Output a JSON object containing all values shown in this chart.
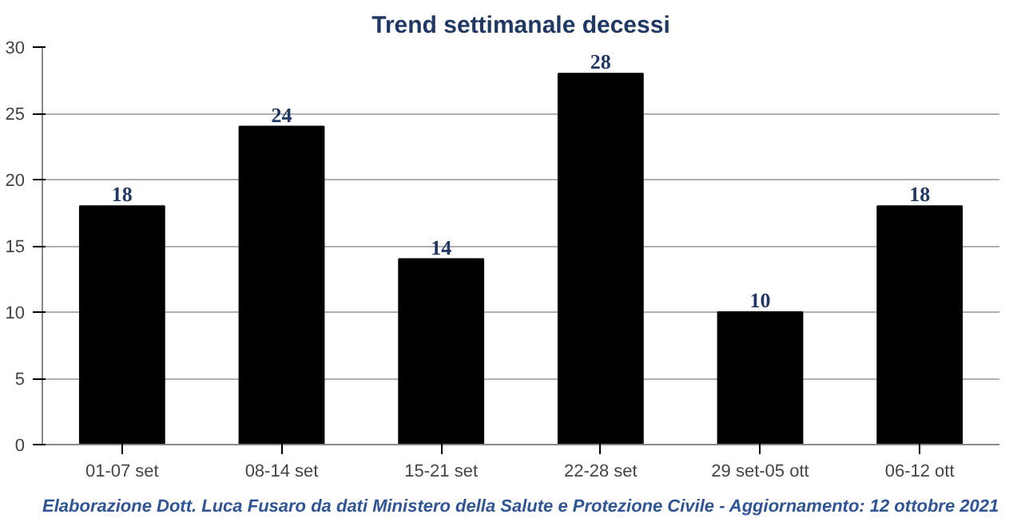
{
  "chart_data": {
    "type": "bar",
    "title": "Trend settimanale decessi",
    "categories": [
      "01-07 set",
      "08-14 set",
      "15-21 set",
      "22-28 set",
      "29 set-05 ott",
      "06-12 ott"
    ],
    "values": [
      18,
      24,
      14,
      28,
      10,
      18
    ],
    "color": "#000000",
    "ylim": [
      0,
      30
    ],
    "yticks": [
      0,
      5,
      10,
      15,
      20,
      25,
      30
    ],
    "grid": "y",
    "data_labels": true,
    "annotations": [
      "Elaborazione Dott. Luca Fusaro da dati Ministero della Salute e Protezione Civile - Aggiornamento: 12 ottobre 2021"
    ]
  }
}
